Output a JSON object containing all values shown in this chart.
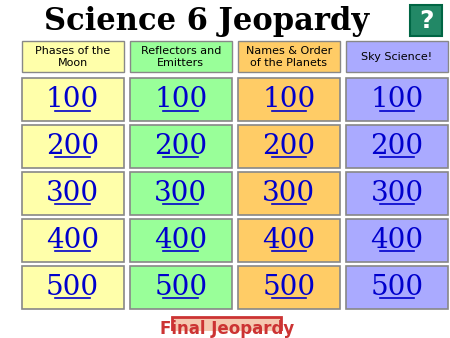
{
  "title": "Science 6 Jeopardy",
  "title_fontsize": 22,
  "background_color": "#ffffff",
  "categories": [
    "Phases of the\nMoon",
    "Reflectors and\nEmitters",
    "Names & Order\nof the Planets",
    "Sky Science!"
  ],
  "cat_colors": [
    "#ffffaa",
    "#99ff99",
    "#ffcc66",
    "#aaaaff"
  ],
  "point_values": [
    "100",
    "200",
    "300",
    "400",
    "500"
  ],
  "cell_colors": [
    "#ffffaa",
    "#99ff99",
    "#ffcc66",
    "#aaaaff"
  ],
  "text_color": "#0000cc",
  "cell_fontsize": 20,
  "cat_fontsize": 8,
  "final_label": "Final Jeopardy",
  "final_bg": "#f5c8b0",
  "final_border": "#cc3333",
  "final_text_color": "#cc3333",
  "final_fontsize": 12,
  "question_icon_bg": "#228866"
}
